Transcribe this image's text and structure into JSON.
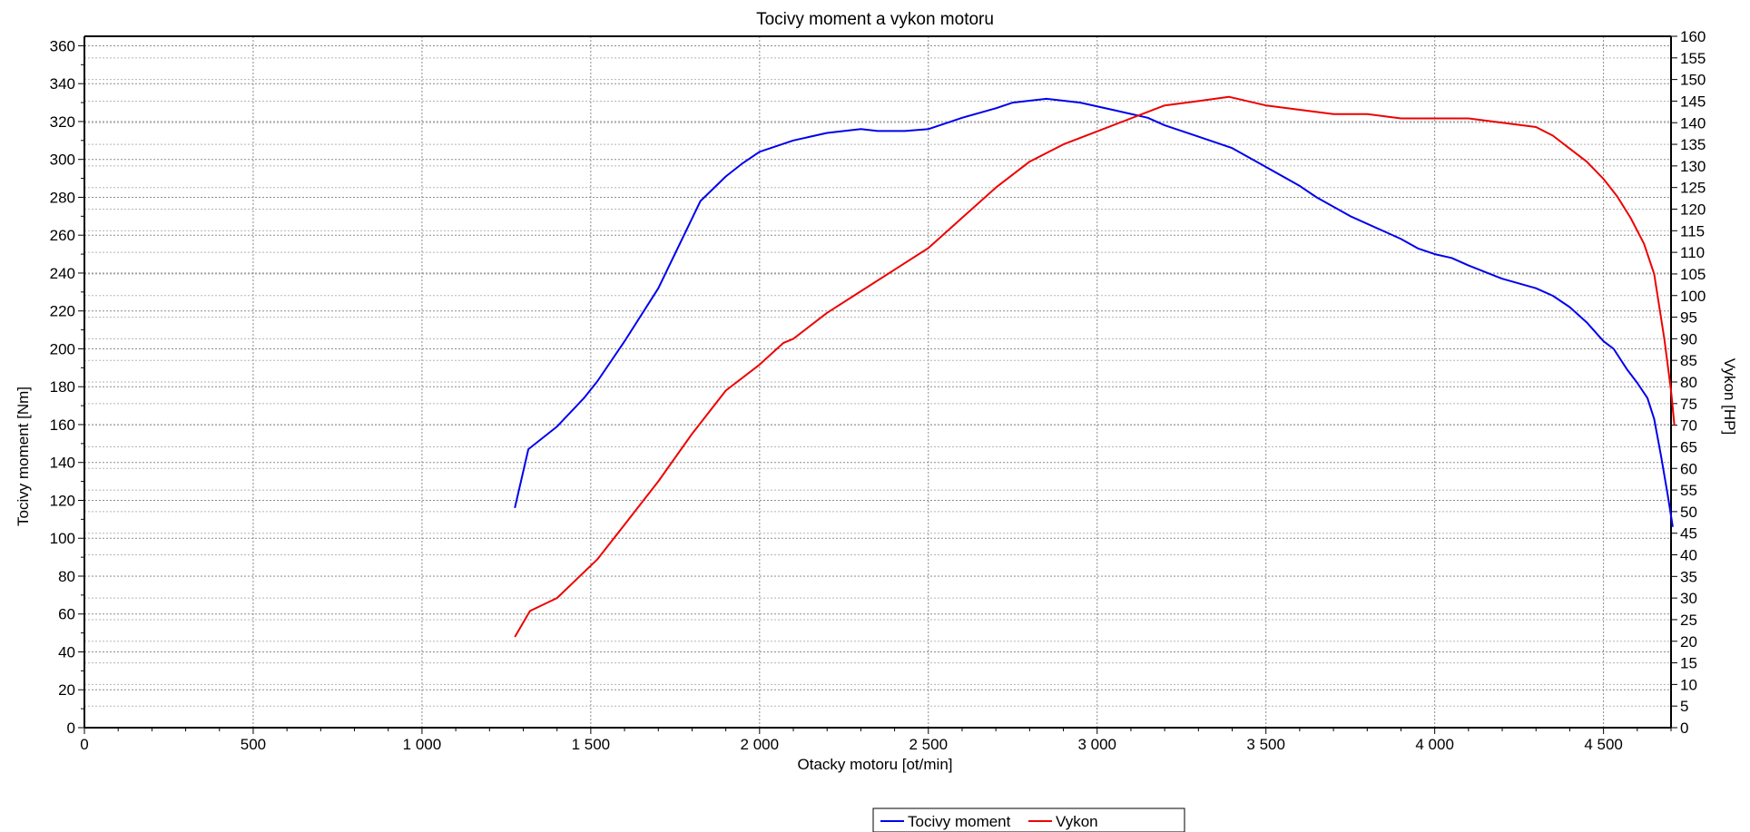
{
  "colors": {
    "torque": "#0000ee",
    "power": "#ee0000",
    "axis": "#000000",
    "grid": "#8c8c8c",
    "background": "#ffffff"
  },
  "chart_data": {
    "type": "line",
    "title": "Tocivy moment a vykon motoru",
    "xlabel": "Otacky motoru [ot/min]",
    "ylabel": "Tocivy moment [Nm]",
    "y2label": "Vykon [HP]",
    "xlim": [
      0,
      4700
    ],
    "ylim": [
      0,
      365
    ],
    "y2lim": [
      0,
      160
    ],
    "x_ticks": [
      0,
      500,
      1000,
      1500,
      2000,
      2500,
      3000,
      3500,
      4000,
      4500
    ],
    "x_tick_labels": [
      "0",
      "500",
      "1 000",
      "1 500",
      "2 000",
      "2 500",
      "3 000",
      "3 500",
      "4 000",
      "4 500"
    ],
    "y_ticks": [
      0,
      20,
      40,
      60,
      80,
      100,
      120,
      140,
      160,
      180,
      200,
      220,
      240,
      260,
      280,
      300,
      320,
      340,
      360
    ],
    "y_tick_labels": [
      "0",
      "20",
      "40",
      "60",
      "80",
      "100",
      "120",
      "140",
      "160",
      "180",
      "200",
      "220",
      "240",
      "260",
      "280",
      "300",
      "320",
      "340",
      "360"
    ],
    "y2_ticks": [
      0,
      5,
      10,
      15,
      20,
      25,
      30,
      35,
      40,
      45,
      50,
      55,
      60,
      65,
      70,
      75,
      80,
      85,
      90,
      95,
      100,
      105,
      110,
      115,
      120,
      125,
      130,
      135,
      140,
      145,
      150,
      155,
      160
    ],
    "y2_tick_labels": [
      "0",
      "5",
      "10",
      "15",
      "20",
      "25",
      "30",
      "35",
      "40",
      "45",
      "50",
      "55",
      "60",
      "65",
      "70",
      "75",
      "80",
      "85",
      "90",
      "95",
      "100",
      "105",
      "110",
      "115",
      "120",
      "125",
      "130",
      "135",
      "140",
      "145",
      "150",
      "155",
      "160"
    ],
    "grid": true,
    "legend_position": "bottom-center",
    "series": [
      {
        "name": "Tocivy moment",
        "axis": "left",
        "color": "#0000ee",
        "points": [
          [
            1275,
            116
          ],
          [
            1315,
            147
          ],
          [
            1400,
            159
          ],
          [
            1480,
            174
          ],
          [
            1520,
            183
          ],
          [
            1600,
            204
          ],
          [
            1700,
            232
          ],
          [
            1825,
            278
          ],
          [
            1900,
            291
          ],
          [
            1950,
            298
          ],
          [
            2000,
            304
          ],
          [
            2050,
            307
          ],
          [
            2100,
            310
          ],
          [
            2200,
            314
          ],
          [
            2300,
            316
          ],
          [
            2350,
            315
          ],
          [
            2430,
            315
          ],
          [
            2500,
            316
          ],
          [
            2600,
            322
          ],
          [
            2700,
            327
          ],
          [
            2750,
            330
          ],
          [
            2850,
            332
          ],
          [
            2950,
            330
          ],
          [
            3050,
            326
          ],
          [
            3150,
            322
          ],
          [
            3200,
            318
          ],
          [
            3300,
            312
          ],
          [
            3400,
            306
          ],
          [
            3500,
            296
          ],
          [
            3600,
            286
          ],
          [
            3650,
            280
          ],
          [
            3700,
            275
          ],
          [
            3750,
            270
          ],
          [
            3850,
            262
          ],
          [
            3900,
            258
          ],
          [
            3950,
            253
          ],
          [
            4000,
            250
          ],
          [
            4050,
            248
          ],
          [
            4100,
            244
          ],
          [
            4200,
            237
          ],
          [
            4300,
            232
          ],
          [
            4350,
            228
          ],
          [
            4400,
            222
          ],
          [
            4450,
            214
          ],
          [
            4500,
            204
          ],
          [
            4530,
            200
          ],
          [
            4570,
            189
          ],
          [
            4600,
            182
          ],
          [
            4630,
            174
          ],
          [
            4650,
            163
          ],
          [
            4670,
            144
          ],
          [
            4690,
            123
          ],
          [
            4705,
            106
          ]
        ]
      },
      {
        "name": "Vykon",
        "axis": "right",
        "color": "#ee0000",
        "points": [
          [
            1275,
            21
          ],
          [
            1320,
            27
          ],
          [
            1400,
            30
          ],
          [
            1520,
            39
          ],
          [
            1600,
            47
          ],
          [
            1700,
            57
          ],
          [
            1800,
            68
          ],
          [
            1900,
            78
          ],
          [
            2000,
            84
          ],
          [
            2070,
            89
          ],
          [
            2100,
            90
          ],
          [
            2200,
            96
          ],
          [
            2300,
            101
          ],
          [
            2400,
            106
          ],
          [
            2500,
            111
          ],
          [
            2600,
            118
          ],
          [
            2700,
            125
          ],
          [
            2800,
            131
          ],
          [
            2900,
            135
          ],
          [
            3000,
            138
          ],
          [
            3100,
            141
          ],
          [
            3200,
            144
          ],
          [
            3300,
            145
          ],
          [
            3390,
            146
          ],
          [
            3500,
            144
          ],
          [
            3600,
            143
          ],
          [
            3700,
            142
          ],
          [
            3800,
            142
          ],
          [
            3900,
            141
          ],
          [
            4000,
            141
          ],
          [
            4100,
            141
          ],
          [
            4200,
            140
          ],
          [
            4300,
            139
          ],
          [
            4350,
            137
          ],
          [
            4400,
            134
          ],
          [
            4450,
            131
          ],
          [
            4500,
            127
          ],
          [
            4540,
            123
          ],
          [
            4580,
            118
          ],
          [
            4620,
            112
          ],
          [
            4650,
            105
          ],
          [
            4680,
            90
          ],
          [
            4700,
            78
          ],
          [
            4710,
            70
          ]
        ]
      }
    ]
  }
}
